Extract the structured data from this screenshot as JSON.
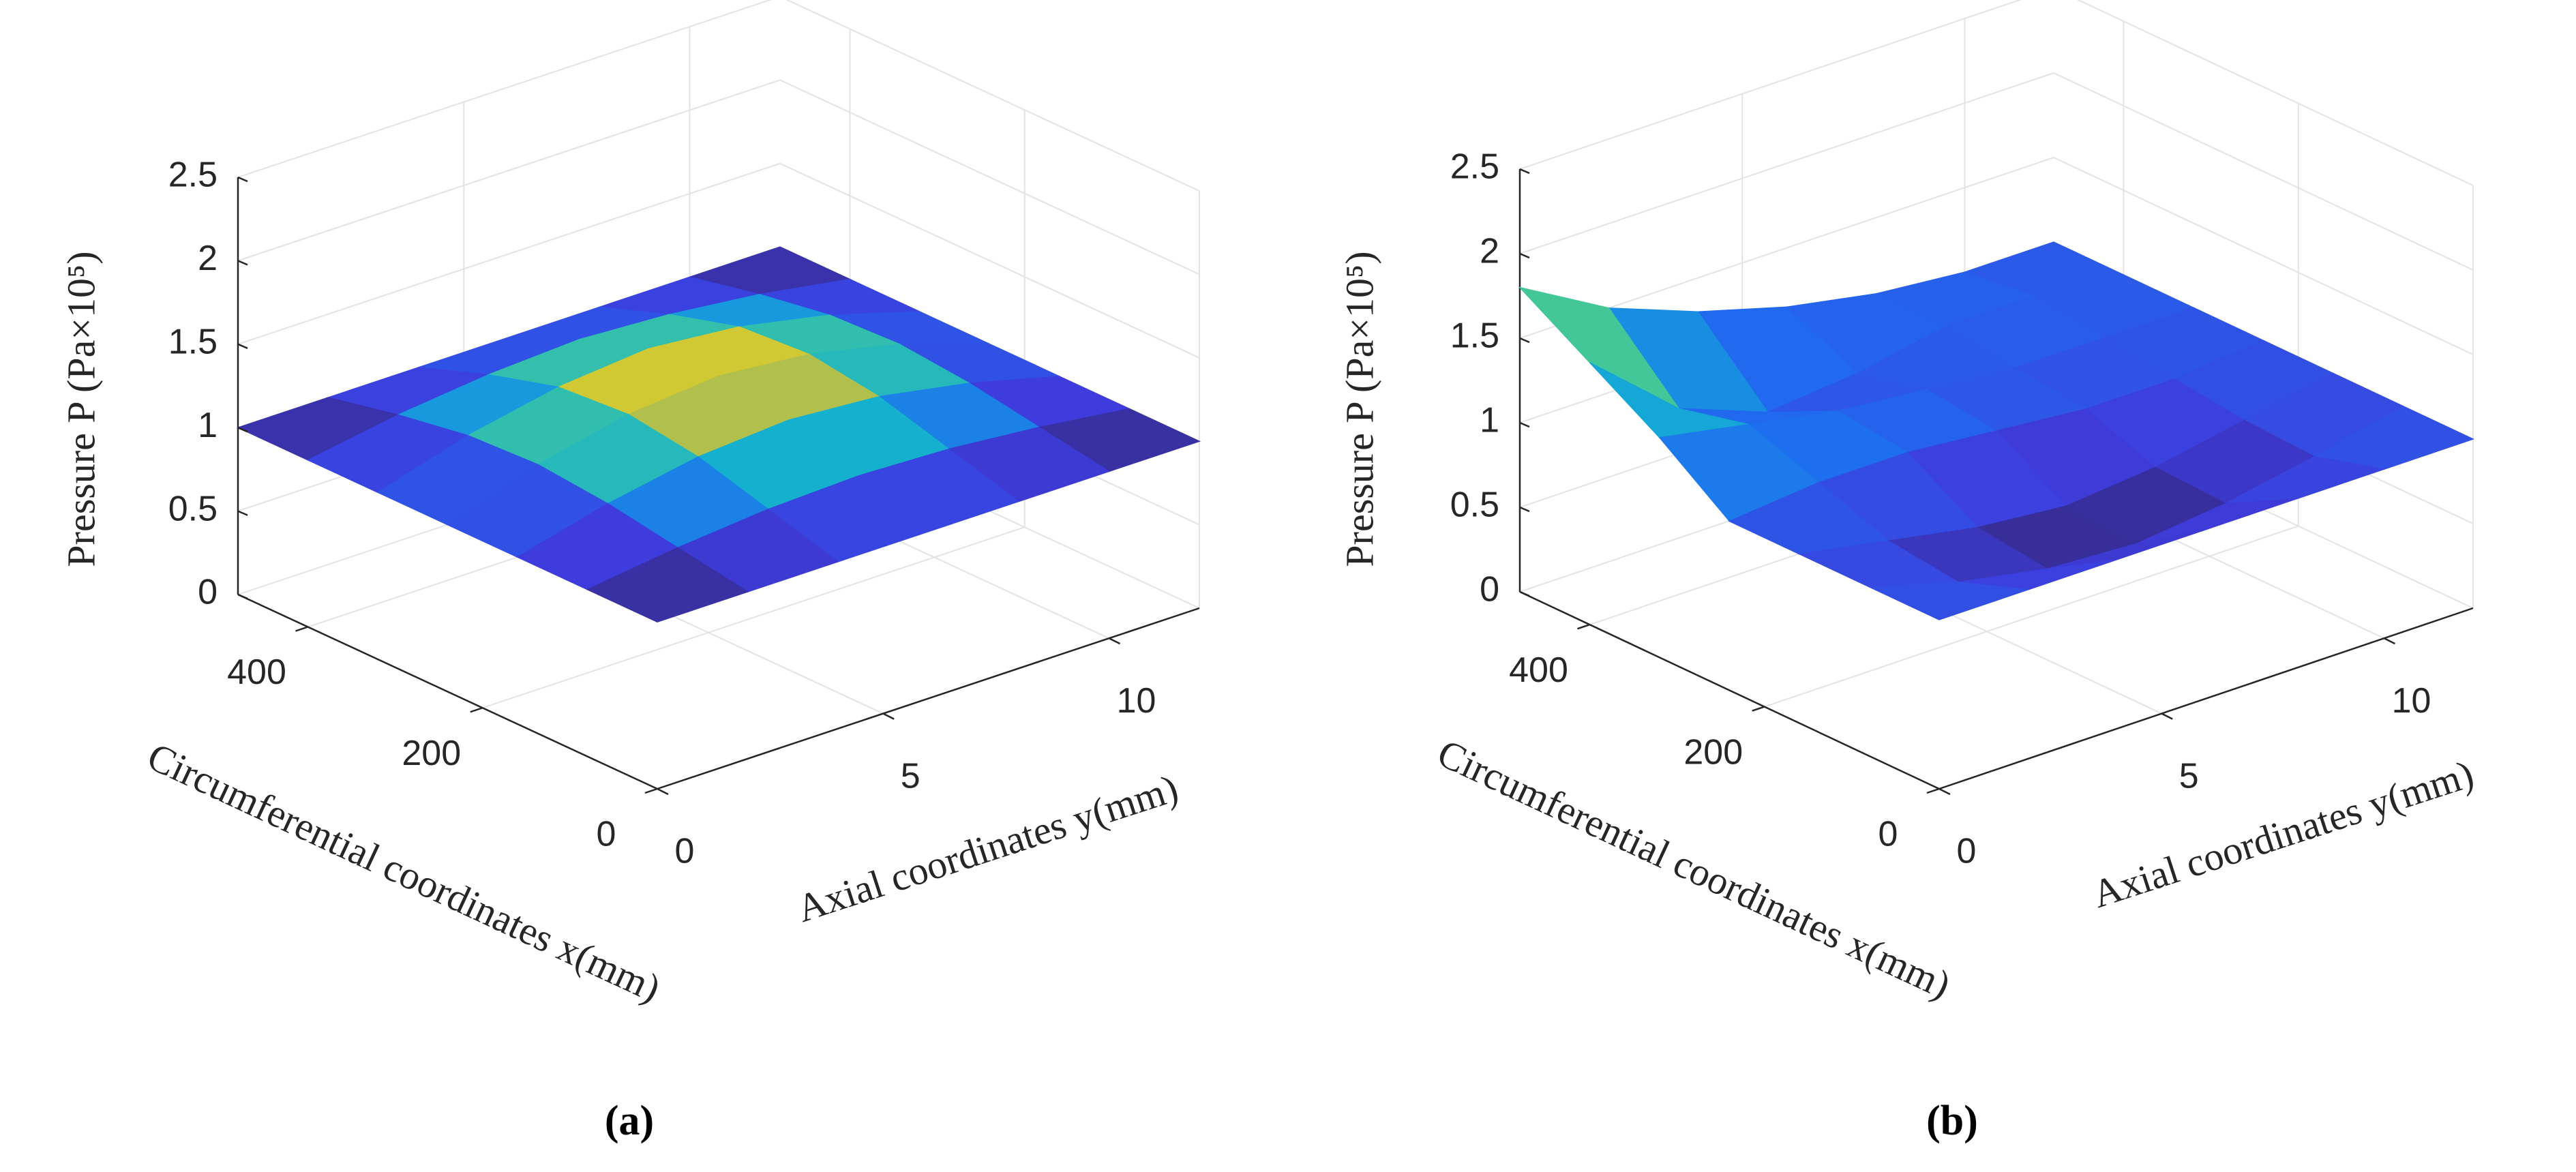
{
  "chart_data": [
    {
      "type": "surface",
      "panel_label": "(a)",
      "xlabel": "Circumferential coordinates x(mm)",
      "ylabel": "Axial coordinates y(mm)",
      "zlabel": "Pressure P (Pa×10⁵)",
      "x": [
        0,
        80,
        160,
        240,
        320,
        400,
        480
      ],
      "y": [
        0,
        2,
        4,
        6,
        8,
        10,
        12
      ],
      "z": [
        [
          1,
          1,
          1,
          1,
          1,
          1,
          1
        ],
        [
          1,
          1.07,
          1.12,
          1.14,
          1.12,
          1.07,
          1
        ],
        [
          1,
          1.14,
          1.24,
          1.28,
          1.24,
          1.14,
          1
        ],
        [
          1,
          1.18,
          1.3,
          1.35,
          1.3,
          1.18,
          1
        ],
        [
          1,
          1.16,
          1.27,
          1.32,
          1.27,
          1.16,
          1
        ],
        [
          1,
          1.09,
          1.15,
          1.18,
          1.15,
          1.09,
          1
        ],
        [
          1,
          1,
          1,
          1,
          1,
          1,
          1
        ]
      ],
      "xlim": [
        0,
        480
      ],
      "ylim": [
        0,
        12
      ],
      "zlim": [
        0,
        2.5
      ],
      "xticks": [
        0,
        200,
        400
      ],
      "yticks": [
        0,
        5,
        10
      ],
      "zticks": [
        0,
        0.5,
        1,
        1.5,
        2,
        2.5
      ],
      "grid": true
    },
    {
      "type": "surface",
      "panel_label": "(b)",
      "xlabel": "Circumferential coordinates x(mm)",
      "ylabel": "Axial coordinates y(mm)",
      "zlabel": "Pressure P (Pa×10⁵)",
      "x": [
        0,
        80,
        160,
        240,
        320,
        400,
        480
      ],
      "y": [
        0,
        2,
        4,
        6,
        8,
        10,
        12
      ],
      "z": [
        [
          1,
          1,
          1,
          1,
          1,
          1,
          1
        ],
        [
          1,
          0.85,
          0.75,
          0.72,
          0.78,
          0.88,
          1
        ],
        [
          1,
          0.9,
          0.8,
          0.75,
          0.8,
          0.9,
          1
        ],
        [
          1,
          1.05,
          1.05,
          1.0,
          0.95,
          0.95,
          1
        ],
        [
          1.3,
          1.2,
          1.1,
          1.05,
          1.0,
          1.0,
          1
        ],
        [
          1.55,
          1.1,
          0.9,
          0.95,
          1.05,
          1.05,
          1
        ],
        [
          1.8,
          1.5,
          1.3,
          1.15,
          1.05,
          1.0,
          1
        ]
      ],
      "xlim": [
        0,
        480
      ],
      "ylim": [
        0,
        12
      ],
      "zlim": [
        0,
        2.5
      ],
      "xticks": [
        0,
        200,
        400
      ],
      "yticks": [
        0,
        5,
        10
      ],
      "zticks": [
        0,
        0.5,
        1,
        1.5,
        2,
        2.5
      ],
      "grid": true
    }
  ]
}
